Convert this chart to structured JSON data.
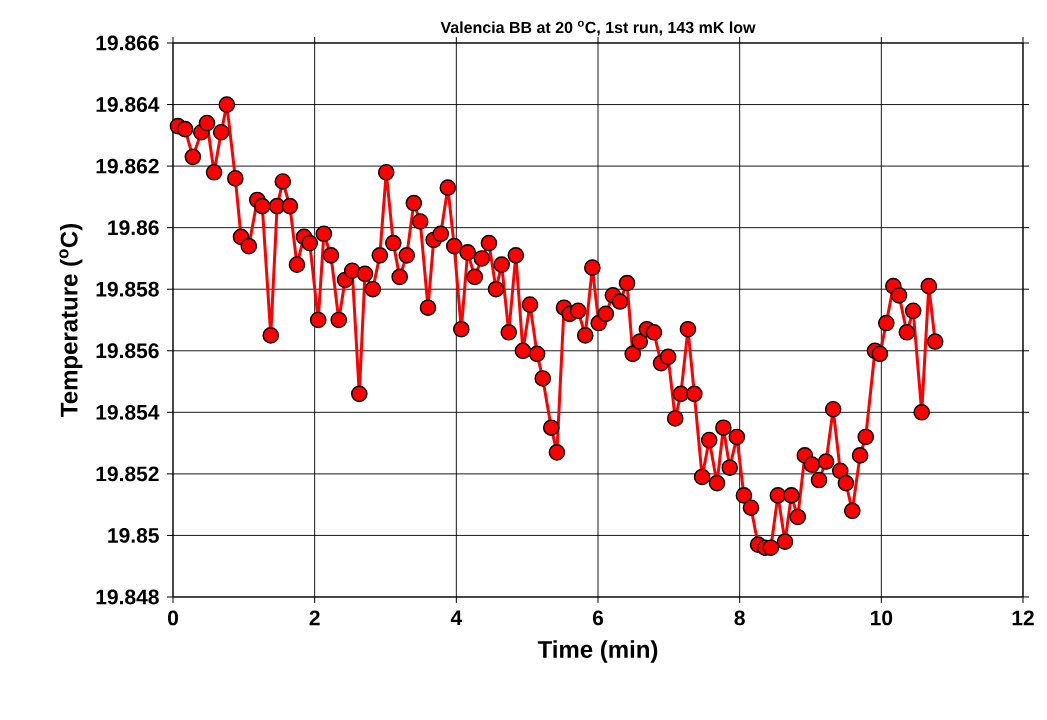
{
  "chart_data": {
    "type": "line",
    "title": "Valencia BB at 20 $^{o}$C, 1st run, 143 mK low",
    "xlabel": "Time (min)",
    "ylabel": "Temperature ($^{o}$C)",
    "x": [
      0.07,
      0.17,
      0.28,
      0.4,
      0.48,
      0.58,
      0.68,
      0.76,
      0.88,
      0.96,
      1.07,
      1.19,
      1.26,
      1.38,
      1.47,
      1.55,
      1.65,
      1.75,
      1.85,
      1.93,
      2.05,
      2.13,
      2.23,
      2.34,
      2.43,
      2.53,
      2.63,
      2.71,
      2.82,
      2.92,
      3.01,
      3.11,
      3.2,
      3.3,
      3.4,
      3.49,
      3.6,
      3.68,
      3.78,
      3.88,
      3.97,
      4.07,
      4.16,
      4.26,
      4.36,
      4.46,
      4.56,
      4.64,
      4.74,
      4.84,
      4.94,
      5.04,
      5.14,
      5.22,
      5.34,
      5.42,
      5.52,
      5.6,
      5.72,
      5.82,
      5.92,
      6.01,
      6.11,
      6.21,
      6.31,
      6.41,
      6.49,
      6.59,
      6.69,
      6.79,
      6.89,
      6.99,
      7.09,
      7.17,
      7.27,
      7.36,
      7.47,
      7.57,
      7.68,
      7.77,
      7.86,
      7.96,
      8.06,
      8.16,
      8.26,
      8.36,
      8.44,
      8.54,
      8.64,
      8.73,
      8.82,
      8.92,
      9.02,
      9.12,
      9.22,
      9.32,
      9.42,
      9.5,
      9.59,
      9.7,
      9.78,
      9.91,
      9.98,
      10.07,
      10.17,
      10.25,
      10.36,
      10.45,
      10.57,
      10.67,
      10.76
    ],
    "series": [
      {
        "color": "#ff0000",
        "values": [
          19.8633,
          19.8632,
          19.8623,
          19.8631,
          19.8634,
          19.8618,
          19.8631,
          19.864,
          19.8616,
          19.8597,
          19.8594,
          19.8609,
          19.8607,
          19.8565,
          19.8607,
          19.8615,
          19.8607,
          19.8588,
          19.8597,
          19.8595,
          19.857,
          19.8598,
          19.8591,
          19.857,
          19.8583,
          19.8586,
          19.8546,
          19.8585,
          19.858,
          19.8591,
          19.8618,
          19.8595,
          19.8584,
          19.8591,
          19.8608,
          19.8602,
          19.8574,
          19.8596,
          19.8598,
          19.8613,
          19.8594,
          19.8567,
          19.8592,
          19.8584,
          19.859,
          19.8595,
          19.858,
          19.8588,
          19.8566,
          19.8591,
          19.856,
          19.8575,
          19.8559,
          19.8551,
          19.8535,
          19.8527,
          19.8574,
          19.8572,
          19.8573,
          19.8565,
          19.8587,
          19.8569,
          19.8572,
          19.8578,
          19.8576,
          19.8582,
          19.8559,
          19.8563,
          19.8567,
          19.8566,
          19.8556,
          19.8558,
          19.8538,
          19.8546,
          19.8567,
          19.8546,
          19.8519,
          19.8531,
          19.8517,
          19.8535,
          19.8522,
          19.8532,
          19.8513,
          19.8509,
          19.8497,
          19.8496,
          19.8496,
          19.8513,
          19.8498,
          19.8513,
          19.8506,
          19.8526,
          19.8523,
          19.8518,
          19.8524,
          19.8541,
          19.8521,
          19.8517,
          19.8508,
          19.8526,
          19.8532,
          19.856,
          19.8559,
          19.8569,
          19.8581,
          19.8578,
          19.8566,
          19.8573,
          19.854,
          19.8581,
          19.8563
        ]
      }
    ],
    "xlim": [
      0,
      12
    ],
    "xticks": [
      0,
      2,
      4,
      6,
      8,
      10,
      12
    ],
    "ylim": [
      19.848,
      19.866
    ],
    "yticks": [
      19.848,
      19.85,
      19.852,
      19.854,
      19.856,
      19.858,
      19.86,
      19.862,
      19.864,
      19.866
    ],
    "grid": true,
    "marker": "circle",
    "line_style": "solid"
  }
}
